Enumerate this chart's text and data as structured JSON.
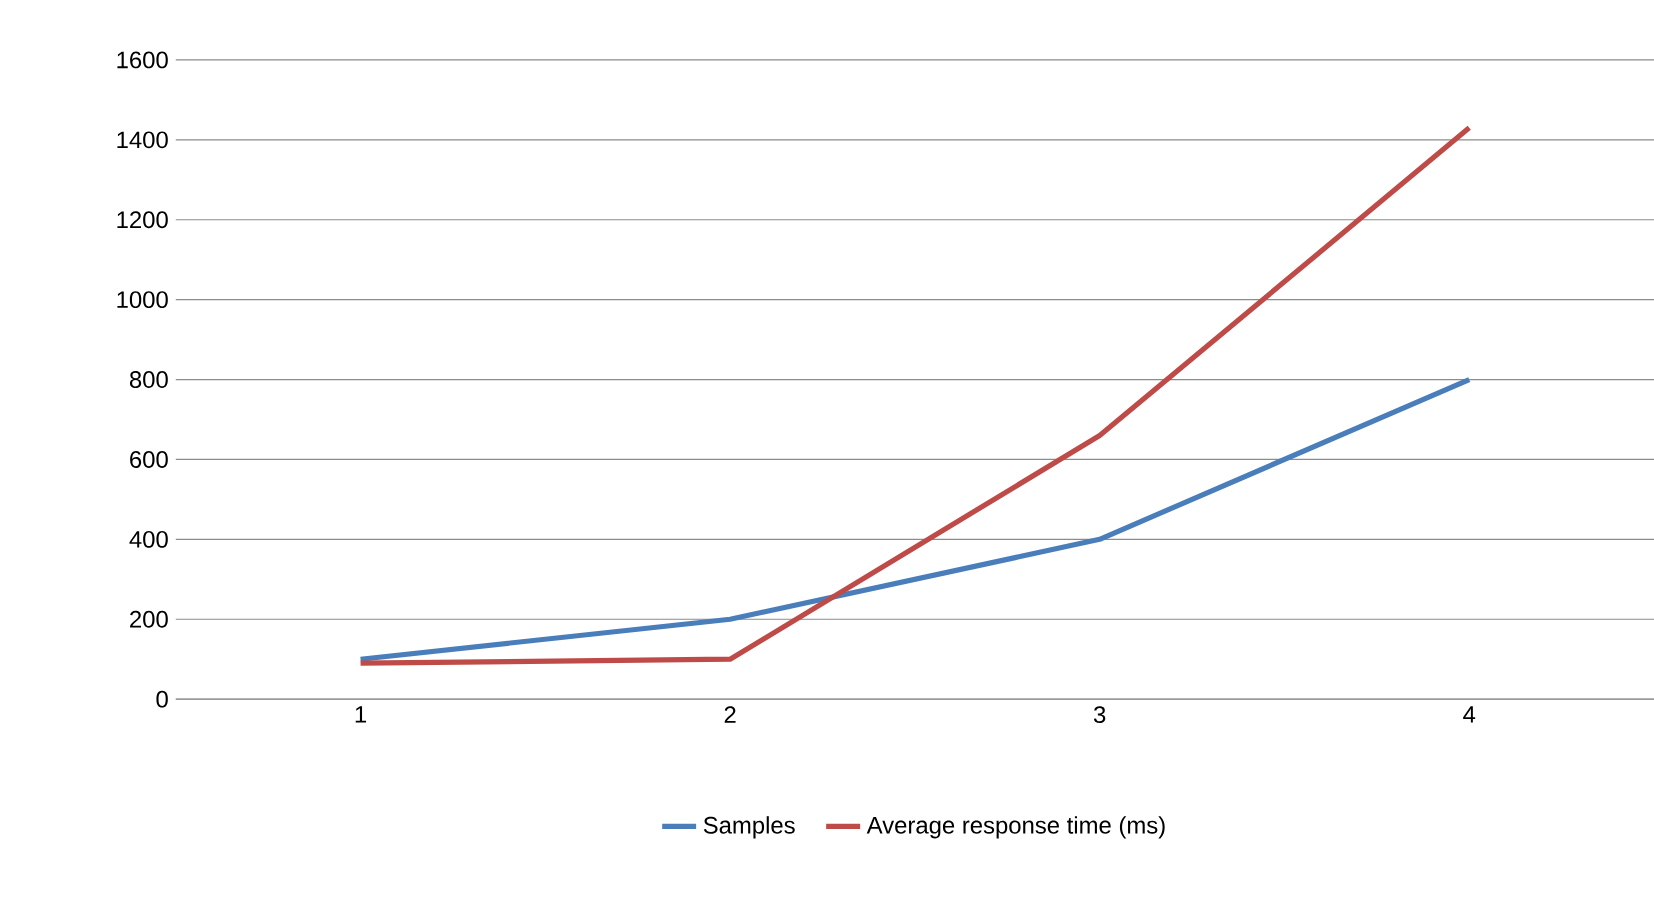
{
  "chart_data": {
    "type": "line",
    "categories": [
      "1",
      "2",
      "3",
      "4"
    ],
    "series": [
      {
        "name": "Samples",
        "color": "#4a7ebb",
        "values": [
          100,
          200,
          400,
          800
        ]
      },
      {
        "name": "Average response time (ms)",
        "color": "#be4b48",
        "values": [
          90,
          100,
          660,
          1430
        ]
      }
    ],
    "ylim": [
      0,
      1600
    ],
    "yticks": [
      0,
      200,
      400,
      600,
      800,
      1000,
      1200,
      1400,
      1600
    ],
    "grid": "y",
    "legend": "bottom"
  }
}
